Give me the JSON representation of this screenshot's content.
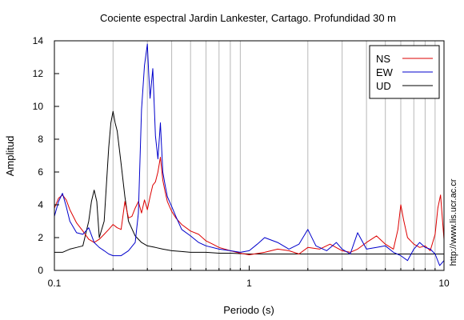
{
  "chart_data": {
    "type": "line",
    "title": "Cociente espectral Jardin Lankester, Cartago. Profundidad 30 m",
    "xlabel": "Periodo (s)",
    "ylabel": "Amplitud",
    "x_scale": "log",
    "xlim": [
      0.1,
      10
    ],
    "ylim": [
      0,
      14
    ],
    "x_ticks": [
      0.1,
      1,
      10
    ],
    "x_tick_labels": [
      "0.1",
      "1",
      "10"
    ],
    "y_ticks": [
      0,
      2,
      4,
      6,
      8,
      10,
      12,
      14
    ],
    "y_tick_labels": [
      "0",
      "2",
      "4",
      "6",
      "8",
      "10",
      "12",
      "14"
    ],
    "grid": "vertical minor (log)",
    "legend_position": "top-right",
    "watermark": "http://www.lis.ucr.ac.cr",
    "series": [
      {
        "name": "NS",
        "color": "#dd0000",
        "x": [
          0.1,
          0.105,
          0.11,
          0.115,
          0.12,
          0.13,
          0.14,
          0.15,
          0.16,
          0.17,
          0.18,
          0.19,
          0.2,
          0.21,
          0.22,
          0.23,
          0.24,
          0.25,
          0.26,
          0.27,
          0.28,
          0.29,
          0.3,
          0.31,
          0.32,
          0.33,
          0.34,
          0.35,
          0.36,
          0.37,
          0.38,
          0.4,
          0.42,
          0.45,
          0.5,
          0.55,
          0.6,
          0.65,
          0.7,
          0.8,
          0.9,
          1,
          1.2,
          1.4,
          1.6,
          1.8,
          2,
          2.3,
          2.6,
          3,
          3.3,
          3.6,
          4,
          4.5,
          5,
          5.5,
          5.8,
          6,
          6.2,
          6.5,
          7,
          7.5,
          8,
          8.5,
          9,
          9.3,
          9.6,
          9.8,
          10
        ],
        "values": [
          3.8,
          4.4,
          4.6,
          4.3,
          3.7,
          2.9,
          2.4,
          1.9,
          1.7,
          1.9,
          2.2,
          2.5,
          2.8,
          2.6,
          2.5,
          4.2,
          3.2,
          3.3,
          3.8,
          4.2,
          3.5,
          4.3,
          3.7,
          4.5,
          5.2,
          5.4,
          6.0,
          6.9,
          5.5,
          4.8,
          4.2,
          3.6,
          3.2,
          2.8,
          2.4,
          2.2,
          1.8,
          1.6,
          1.4,
          1.2,
          1.05,
          0.95,
          1.1,
          1.3,
          1.2,
          1.0,
          1.4,
          1.3,
          1.6,
          1.2,
          1.1,
          1.3,
          1.7,
          2.1,
          1.6,
          1.3,
          2.5,
          4.0,
          3.1,
          2.0,
          1.6,
          1.4,
          1.5,
          1.2,
          2.2,
          3.8,
          4.6,
          3.2,
          1.9
        ]
      },
      {
        "name": "EW",
        "color": "#0000cc",
        "x": [
          0.1,
          0.105,
          0.11,
          0.115,
          0.12,
          0.13,
          0.14,
          0.15,
          0.16,
          0.17,
          0.18,
          0.19,
          0.2,
          0.22,
          0.24,
          0.26,
          0.27,
          0.28,
          0.29,
          0.3,
          0.305,
          0.31,
          0.32,
          0.33,
          0.34,
          0.35,
          0.36,
          0.37,
          0.38,
          0.4,
          0.42,
          0.45,
          0.5,
          0.55,
          0.6,
          0.7,
          0.8,
          0.9,
          1,
          1.1,
          1.2,
          1.4,
          1.6,
          1.8,
          2,
          2.2,
          2.5,
          2.8,
          3,
          3.3,
          3.6,
          4,
          4.5,
          5,
          5.5,
          6,
          6.5,
          7,
          7.5,
          8,
          8.5,
          9,
          9.5,
          10
        ],
        "values": [
          3.3,
          4.2,
          4.7,
          3.9,
          3.0,
          2.3,
          2.2,
          2.6,
          1.7,
          1.4,
          1.2,
          1.0,
          0.9,
          0.9,
          1.2,
          1.7,
          3.5,
          9.8,
          12.5,
          13.8,
          12.0,
          10.5,
          12.3,
          8.2,
          6.8,
          9.0,
          6.0,
          5.2,
          4.5,
          3.9,
          3.3,
          2.5,
          2.1,
          1.7,
          1.5,
          1.3,
          1.2,
          1.1,
          1.2,
          1.6,
          2.0,
          1.7,
          1.3,
          1.6,
          2.5,
          1.5,
          1.2,
          1.7,
          1.3,
          1.0,
          2.3,
          1.3,
          1.4,
          1.5,
          1.1,
          0.9,
          0.6,
          1.3,
          1.7,
          1.4,
          1.3,
          1.0,
          0.3,
          0.6
        ]
      },
      {
        "name": "UD",
        "color": "#000000",
        "x": [
          0.1,
          0.11,
          0.12,
          0.13,
          0.14,
          0.15,
          0.155,
          0.16,
          0.165,
          0.17,
          0.18,
          0.19,
          0.195,
          0.2,
          0.205,
          0.21,
          0.22,
          0.23,
          0.24,
          0.26,
          0.28,
          0.3,
          0.33,
          0.36,
          0.4,
          0.45,
          0.5,
          0.6,
          0.7,
          0.8,
          1,
          1.3,
          1.6,
          2,
          2.5,
          3,
          4,
          5,
          6,
          7,
          8,
          9,
          10
        ],
        "values": [
          1.1,
          1.1,
          1.3,
          1.4,
          1.5,
          3.0,
          4.2,
          4.9,
          4.2,
          2.0,
          3.0,
          7.5,
          9.0,
          9.7,
          9.0,
          8.5,
          6.5,
          4.5,
          3.0,
          2.1,
          1.7,
          1.5,
          1.4,
          1.3,
          1.2,
          1.15,
          1.1,
          1.1,
          1.05,
          1.05,
          1.0,
          1.0,
          1.0,
          1.0,
          1.0,
          1.0,
          1.0,
          1.0,
          1.0,
          1.0,
          1.0,
          1.0,
          1.0
        ]
      }
    ]
  }
}
